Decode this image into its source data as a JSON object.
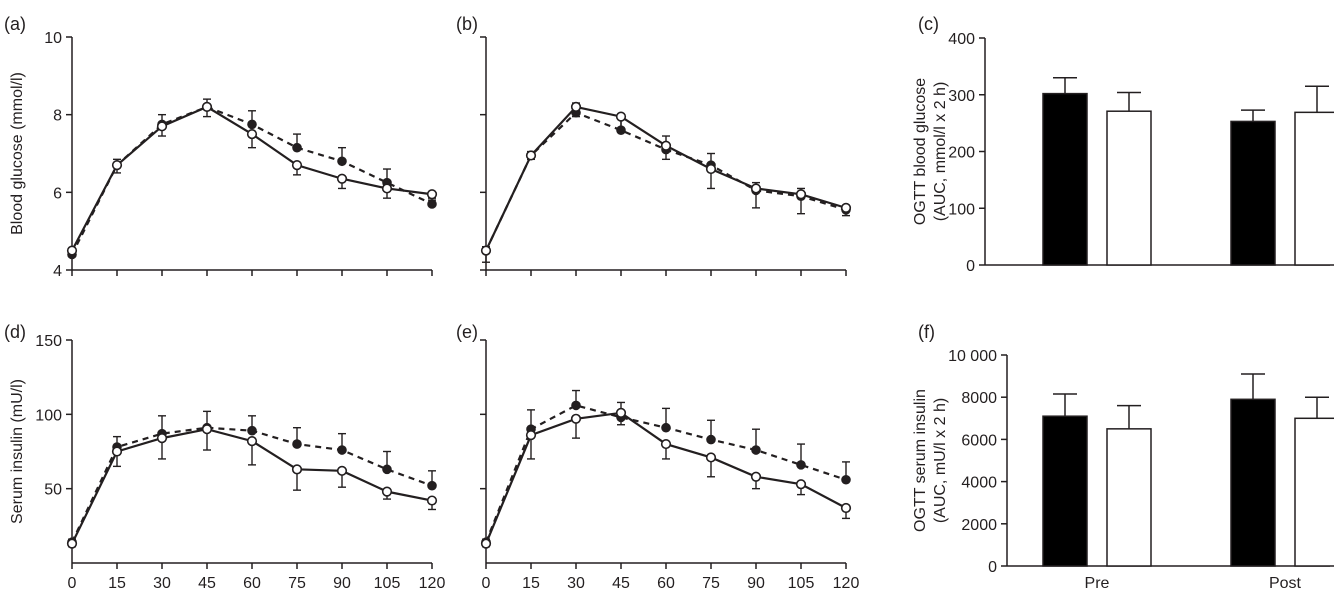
{
  "chart_data": [
    {
      "panel": "(a)",
      "type": "line",
      "ylabel": "Blood glucose (mmol/l)",
      "xlabel": "",
      "x": [
        0,
        15,
        30,
        45,
        60,
        75,
        90,
        105,
        120
      ],
      "xticks_labeled": false,
      "ylim": [
        4,
        10
      ],
      "yticks": [
        4,
        6,
        8,
        10
      ],
      "ytick_labels": [
        "4",
        "6",
        "8",
        "10"
      ],
      "series": [
        {
          "name": "open-solid",
          "marker": "open",
          "dash": false,
          "values": [
            4.5,
            6.7,
            7.7,
            8.2,
            7.5,
            6.7,
            6.35,
            6.1,
            5.95
          ],
          "errors": [
            0.1,
            0.2,
            0.25,
            0.25,
            0.35,
            0.25,
            0.25,
            0.25,
            0.1
          ]
        },
        {
          "name": "filled-dashed",
          "marker": "filled",
          "dash": true,
          "values": [
            4.4,
            6.7,
            7.75,
            8.2,
            7.75,
            7.15,
            6.8,
            6.25,
            5.7
          ],
          "errors": [
            0.1,
            0.15,
            0.25,
            0.2,
            0.35,
            0.35,
            0.35,
            0.35,
            0.1
          ]
        }
      ]
    },
    {
      "panel": "(b)",
      "type": "line",
      "ylabel": "",
      "xlabel": "",
      "x": [
        0,
        15,
        30,
        45,
        60,
        75,
        90,
        105,
        120
      ],
      "xticks_labeled": false,
      "ylim": [
        4,
        10
      ],
      "yticks": [
        4,
        6,
        8,
        10
      ],
      "ytick_labels": [],
      "series": [
        {
          "name": "open-solid",
          "marker": "open",
          "dash": false,
          "values": [
            4.5,
            6.95,
            8.2,
            7.95,
            7.2,
            6.6,
            6.1,
            5.95,
            5.6
          ],
          "errors": [
            0.3,
            0.1,
            0.25,
            0.4,
            0.35,
            0.5,
            0.5,
            0.5,
            0.2
          ]
        },
        {
          "name": "filled-dashed",
          "marker": "filled",
          "dash": true,
          "values": [
            4.5,
            6.95,
            8.05,
            7.6,
            7.1,
            6.7,
            6.05,
            5.9,
            5.55
          ],
          "errors": [
            0.1,
            0.1,
            0.25,
            0.4,
            0.35,
            0.3,
            0.2,
            0.2,
            0.1
          ]
        }
      ]
    },
    {
      "panel": "(c)",
      "type": "bar",
      "ylabel": "OGTT blood glucose\n(AUC, mmol/l x 2 h)",
      "categories": [
        "Pre",
        "Post"
      ],
      "category_labels_shown": false,
      "ylim": [
        0,
        400
      ],
      "yticks": [
        0,
        100,
        200,
        300,
        400
      ],
      "ytick_labels": [
        "0",
        "100",
        "200",
        "300",
        "400"
      ],
      "series": [
        {
          "name": "filled",
          "values": [
            302,
            253
          ],
          "errors": [
            28,
            20
          ]
        },
        {
          "name": "open",
          "values": [
            271,
            269
          ],
          "errors": [
            33,
            46
          ]
        }
      ]
    },
    {
      "panel": "(d)",
      "type": "line",
      "ylabel": "Serum insulin (mU/l)",
      "xlabel": "",
      "x": [
        0,
        15,
        30,
        45,
        60,
        75,
        90,
        105,
        120
      ],
      "x_tick_labels": [
        "0",
        "15",
        "30",
        "45",
        "60",
        "75",
        "90",
        "105",
        "120"
      ],
      "xticks_labeled": true,
      "ylim": [
        0,
        150
      ],
      "yticks": [
        50,
        100,
        150
      ],
      "ytick_labels": [
        "50",
        "100",
        "150"
      ],
      "series": [
        {
          "name": "open-solid",
          "marker": "open",
          "dash": false,
          "values": [
            13,
            75,
            84,
            90,
            82,
            63,
            62,
            48,
            42
          ],
          "errors": [
            2,
            10,
            14,
            14,
            16,
            14,
            11,
            5,
            6
          ]
        },
        {
          "name": "filled-dashed",
          "marker": "filled",
          "dash": true,
          "values": [
            14,
            78,
            87,
            91,
            89,
            80,
            76,
            63,
            52
          ],
          "errors": [
            2,
            7,
            12,
            11,
            10,
            11,
            11,
            12,
            10
          ]
        }
      ]
    },
    {
      "panel": "(e)",
      "type": "line",
      "ylabel": "",
      "xlabel": "",
      "x": [
        0,
        15,
        30,
        45,
        60,
        75,
        90,
        105,
        120
      ],
      "x_tick_labels": [
        "0",
        "15",
        "30",
        "45",
        "60",
        "75",
        "90",
        "105",
        "120"
      ],
      "xticks_labeled": true,
      "ylim": [
        0,
        150
      ],
      "yticks": [
        50,
        100,
        150
      ],
      "ytick_labels": [],
      "series": [
        {
          "name": "open-solid",
          "marker": "open",
          "dash": false,
          "values": [
            13,
            86,
            97,
            101,
            80,
            71,
            58,
            53,
            37
          ],
          "errors": [
            2,
            16,
            13,
            8,
            10,
            13,
            8,
            7,
            7
          ]
        },
        {
          "name": "filled-dashed",
          "marker": "filled",
          "dash": true,
          "values": [
            14,
            90,
            106,
            98,
            91,
            83,
            76,
            66,
            56
          ],
          "errors": [
            2,
            13,
            10,
            10,
            13,
            13,
            14,
            14,
            12
          ]
        }
      ]
    },
    {
      "panel": "(f)",
      "type": "bar",
      "ylabel": "OGTT serum insulin\n(AUC, mU/l x 2 h)",
      "categories": [
        "Pre",
        "Post"
      ],
      "category_labels_shown": true,
      "ylim": [
        0,
        10000
      ],
      "yticks": [
        0,
        2000,
        4000,
        6000,
        8000,
        10000
      ],
      "ytick_labels": [
        "0",
        "2000",
        "4000",
        "6000",
        "8000",
        "10 000"
      ],
      "series": [
        {
          "name": "filled",
          "values": [
            7100,
            7900
          ],
          "errors": [
            1050,
            1200
          ]
        },
        {
          "name": "open",
          "values": [
            6500,
            7000
          ],
          "errors": [
            1100,
            1000
          ]
        }
      ]
    }
  ],
  "style": {
    "ink": "#231f20",
    "bar_filled": "#000000",
    "bar_open": "#ffffff"
  }
}
